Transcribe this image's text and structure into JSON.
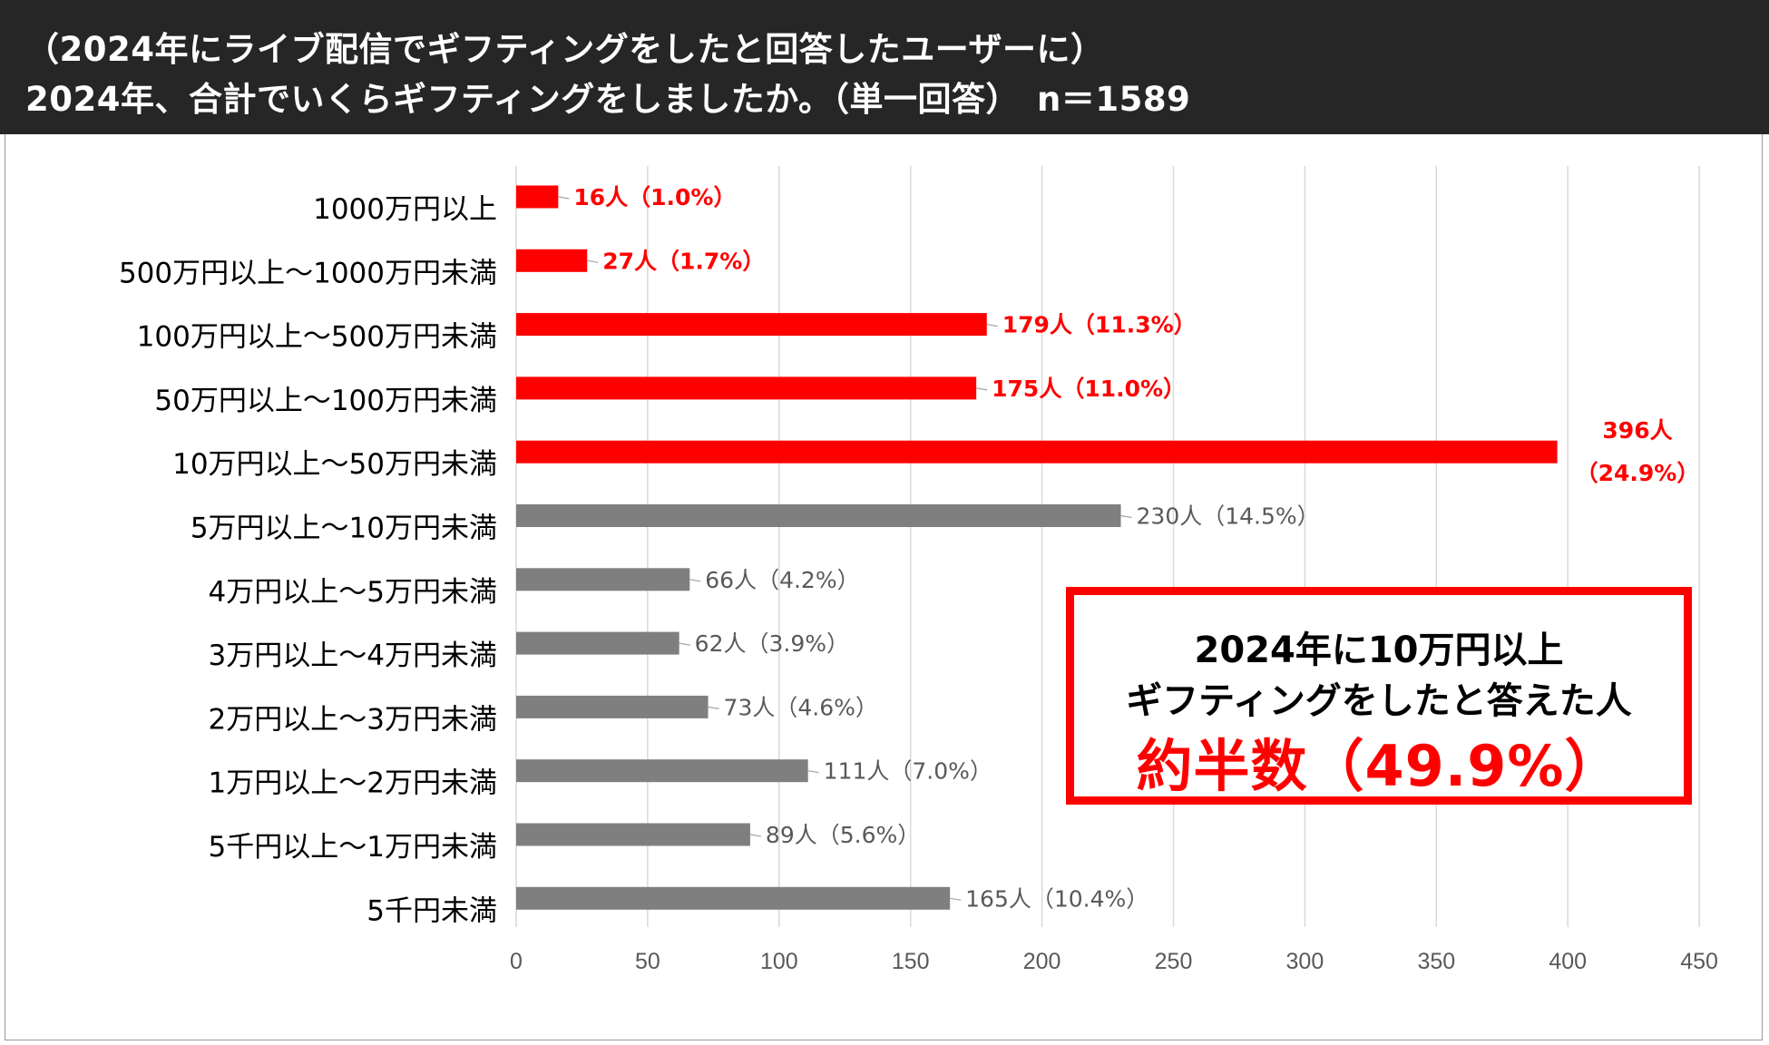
{
  "header": {
    "line1": "（2024年にライブ配信でギフティングをしたと回答したユーザーに）",
    "line2": "2024年、合計でいくらギフティングをしましたか。（単一回答）　n＝1589"
  },
  "chart_data": {
    "type": "bar",
    "orientation": "horizontal",
    "categories": [
      "1000万円以上",
      "500万円以上～1000万円未満",
      "100万円以上～500万円未満",
      "50万円以上～100万円未満",
      "10万円以上～50万円未満",
      "5万円以上～10万円未満",
      "4万円以上～5万円未満",
      "3万円以上～4万円未満",
      "2万円以上～3万円未満",
      "1万円以上～2万円未満",
      "5千円以上～1万円未満",
      "5千円未満"
    ],
    "values": [
      16,
      27,
      179,
      175,
      396,
      230,
      66,
      62,
      73,
      111,
      89,
      165
    ],
    "data_labels": [
      "16人（1.0%）",
      "27人（1.7%）",
      "179人（11.3%）",
      "175人（11.0%）",
      "396人（24.9%）",
      "230人（14.5%）",
      "66人（4.2%）",
      "62人（3.9%）",
      "73人（4.6%）",
      "111人（7.0%）",
      "89人（5.6%）",
      "165人（10.4%）"
    ],
    "label_split": {
      "4": [
        "396人",
        "（24.9%）"
      ]
    },
    "highlight": [
      true,
      true,
      true,
      true,
      true,
      false,
      false,
      false,
      false,
      false,
      false,
      false
    ],
    "xlim": [
      0,
      450
    ],
    "xticks": [
      0,
      50,
      100,
      150,
      200,
      250,
      300,
      350,
      400,
      450
    ],
    "grid": true,
    "colors": {
      "highlight": "#ff0000",
      "normal": "#7f7f7f",
      "grid": "#d9d9d9",
      "axis": "#595959"
    }
  },
  "callout": {
    "line1": "2024年に10万円以上",
    "line2": "ギフティングをしたと答えた人",
    "line3": "約半数（49.9%）"
  }
}
